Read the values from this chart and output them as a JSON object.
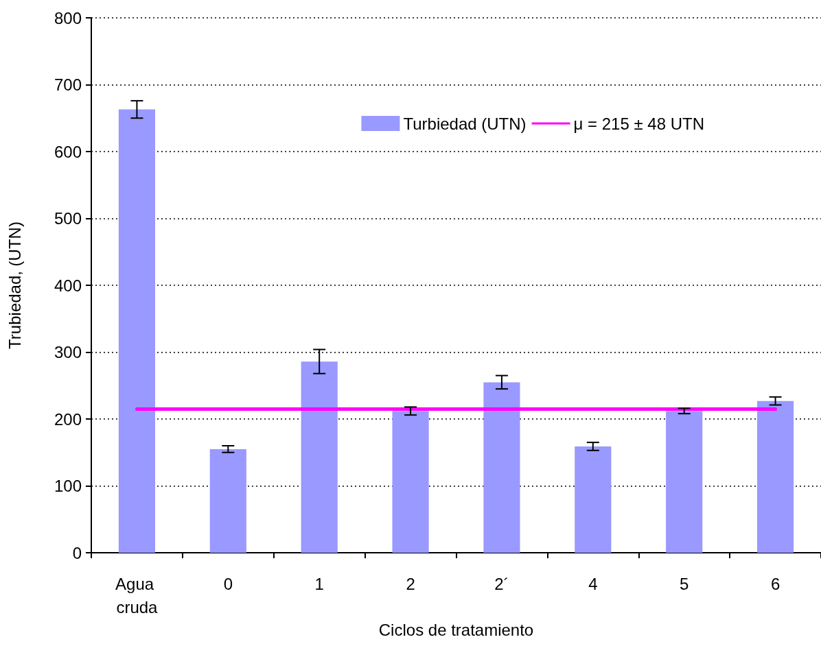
{
  "chart_data": {
    "type": "bar",
    "xlabel": "Ciclos de tratamiento",
    "ylabel": "Trubiedad, (UTN)",
    "categories": [
      "Agua cruda",
      "0",
      "1",
      "2",
      "2´",
      "4",
      "5",
      "6"
    ],
    "series": [
      {
        "name": "Turbiedad (UTN)",
        "color": "#9999ff",
        "values": [
          663,
          155,
          286,
          212,
          255,
          159,
          212,
          227
        ],
        "errors": [
          13,
          5,
          18,
          6,
          10,
          6,
          4,
          6
        ]
      },
      {
        "name": "μ = 215 ± 48 UTN",
        "type": "line",
        "color": "#ff00ff",
        "marker": "none",
        "values": [
          215,
          215,
          215,
          215,
          215,
          215,
          215,
          215
        ]
      }
    ],
    "ylim": [
      0,
      800
    ],
    "yticks": [
      0,
      100,
      200,
      300,
      400,
      500,
      600,
      700,
      800
    ],
    "grid": "y",
    "legend": "top right"
  }
}
